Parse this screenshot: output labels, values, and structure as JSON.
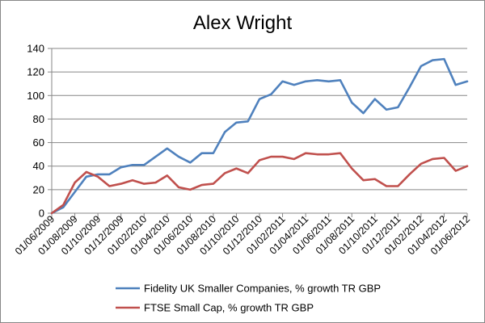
{
  "chart_data": {
    "type": "line",
    "title": "Alex Wright",
    "xlabel": "",
    "ylabel": "",
    "ylim": [
      0,
      140
    ],
    "yticks": [
      0,
      20,
      40,
      60,
      80,
      100,
      120,
      140
    ],
    "grid": "horizontal",
    "legend_position": "bottom",
    "x": [
      "01/06/2009",
      "01/07/2009",
      "01/08/2009",
      "01/09/2009",
      "01/10/2009",
      "01/11/2009",
      "01/12/2009",
      "01/01/2010",
      "01/02/2010",
      "01/03/2010",
      "01/04/2010",
      "01/05/2010",
      "01/06/2010",
      "01/07/2010",
      "01/08/2010",
      "01/09/2010",
      "01/10/2010",
      "01/11/2010",
      "01/12/2010",
      "01/01/2011",
      "01/02/2011",
      "01/03/2011",
      "01/04/2011",
      "01/05/2011",
      "01/06/2011",
      "01/07/2011",
      "01/08/2011",
      "01/09/2011",
      "01/10/2011",
      "01/11/2011",
      "01/12/2011",
      "01/01/2012",
      "01/02/2012",
      "01/03/2012",
      "01/04/2012",
      "01/05/2012",
      "01/06/2012"
    ],
    "xtick_labels": [
      "01/06/2009",
      "01/08/2009",
      "01/10/2009",
      "01/12/2009",
      "01/02/2010",
      "01/04/2010",
      "01/06/2010",
      "01/08/2010",
      "01/10/2010",
      "01/12/2010",
      "01/02/2011",
      "01/04/2011",
      "01/06/2011",
      "01/08/2011",
      "01/10/2011",
      "01/12/2011",
      "01/02/2012",
      "01/04/2012",
      "01/06/2012"
    ],
    "series": [
      {
        "name": "Fidelity UK Smaller Companies, % growth TR GBP",
        "color": "#4f81bd",
        "values": [
          0,
          5,
          18,
          31,
          33,
          33,
          39,
          41,
          41,
          48,
          55,
          48,
          43,
          51,
          51,
          69,
          77,
          78,
          97,
          101,
          112,
          109,
          112,
          113,
          112,
          113,
          94,
          85,
          97,
          88,
          90,
          107,
          125,
          130,
          131,
          109,
          112
        ]
      },
      {
        "name": "FTSE Small Cap, % growth TR GBP",
        "color": "#c0504d",
        "values": [
          0,
          7,
          26,
          35,
          31,
          23,
          25,
          28,
          25,
          26,
          32,
          22,
          20,
          24,
          25,
          34,
          38,
          34,
          45,
          48,
          48,
          46,
          51,
          50,
          50,
          51,
          38,
          28,
          29,
          23,
          23,
          33,
          42,
          46,
          47,
          36,
          40
        ]
      }
    ]
  }
}
